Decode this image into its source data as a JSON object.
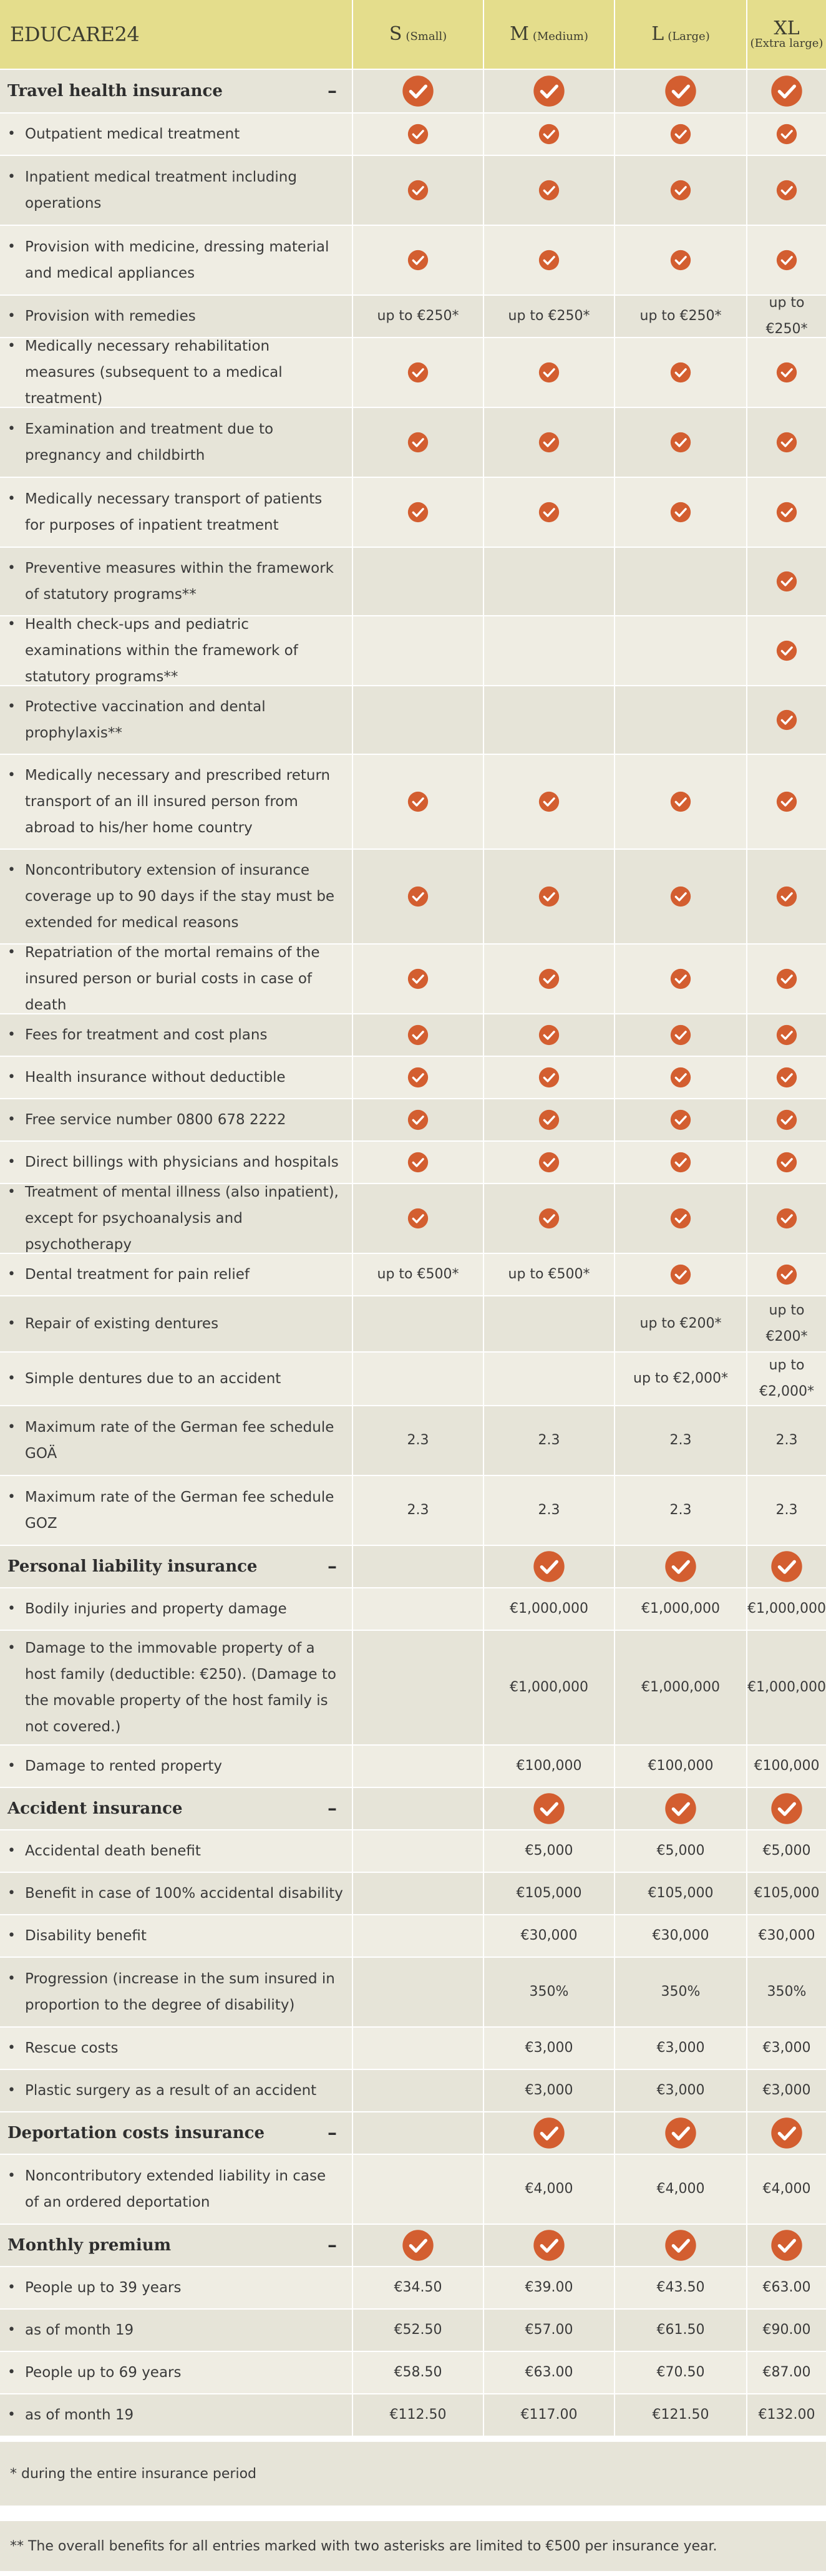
{
  "header": {
    "brand": "EDUCARE24",
    "columns": [
      {
        "letter": "S",
        "size": "(Small)"
      },
      {
        "letter": "M",
        "size": "(Medium)"
      },
      {
        "letter": "L",
        "size": "(Large)"
      },
      {
        "letter": "XL",
        "size": "(Extra large)"
      }
    ]
  },
  "colors": {
    "header_bg": "#e4dd8c",
    "row_light": "#efede3",
    "row_dark": "#e6e4d8",
    "check": "#d35e30"
  },
  "rows": [
    {
      "type": "section",
      "label": "Travel health insurance",
      "toggle": "–",
      "values": [
        "check",
        "check",
        "check",
        "check"
      ]
    },
    {
      "type": "item",
      "label": "Outpatient medical treatment",
      "values": [
        "check",
        "check",
        "check",
        "check"
      ]
    },
    {
      "type": "item",
      "label": "Inpatient medical treatment including operations",
      "values": [
        "check",
        "check",
        "check",
        "check"
      ]
    },
    {
      "type": "item",
      "label": "Provision with medicine, dressing material and medical appliances",
      "values": [
        "check",
        "check",
        "check",
        "check"
      ]
    },
    {
      "type": "item",
      "label": "Provision with remedies",
      "values": [
        "up to €250*",
        "up to €250*",
        "up to €250*",
        "up to €250*"
      ]
    },
    {
      "type": "item",
      "label": "Medically necessary rehabilitation measures (subsequent to a medical treatment)",
      "values": [
        "check",
        "check",
        "check",
        "check"
      ]
    },
    {
      "type": "item",
      "label": "Examination and treatment due to pregnancy and childbirth",
      "values": [
        "check",
        "check",
        "check",
        "check"
      ]
    },
    {
      "type": "item",
      "label": "Medically necessary transport of patients for purposes of inpatient treatment",
      "values": [
        "check",
        "check",
        "check",
        "check"
      ]
    },
    {
      "type": "item",
      "label": "Preventive measures within the framework of statutory programs**",
      "values": [
        "",
        "",
        "",
        "check"
      ]
    },
    {
      "type": "item",
      "label": "Health check-ups and pediatric examinations within the framework of statutory programs**",
      "values": [
        "",
        "",
        "",
        "check"
      ]
    },
    {
      "type": "item",
      "label": "Protective vaccination and dental prophylaxis**",
      "values": [
        "",
        "",
        "",
        "check"
      ]
    },
    {
      "type": "item",
      "label": "Medically necessary and prescribed return transport of an ill insured person from abroad to his/her home country",
      "values": [
        "check",
        "check",
        "check",
        "check"
      ]
    },
    {
      "type": "item",
      "label": "Noncontributory extension of insurance coverage up to 90 days if the stay must be extended for medical reasons",
      "values": [
        "check",
        "check",
        "check",
        "check"
      ]
    },
    {
      "type": "item",
      "label": "Repatriation of the mortal remains of the insured person or burial costs in case of death",
      "values": [
        "check",
        "check",
        "check",
        "check"
      ]
    },
    {
      "type": "item",
      "label": "Fees for treatment and cost plans",
      "values": [
        "check",
        "check",
        "check",
        "check"
      ]
    },
    {
      "type": "item",
      "label": "Health insurance without deductible",
      "values": [
        "check",
        "check",
        "check",
        "check"
      ]
    },
    {
      "type": "item",
      "label": "Free service number 0800 678 2222",
      "values": [
        "check",
        "check",
        "check",
        "check"
      ]
    },
    {
      "type": "item",
      "label": "Direct billings with physicians and hospitals",
      "values": [
        "check",
        "check",
        "check",
        "check"
      ]
    },
    {
      "type": "item",
      "label": "Treatment of mental illness (also inpatient), except for psychoanalysis and psychotherapy",
      "values": [
        "check",
        "check",
        "check",
        "check"
      ]
    },
    {
      "type": "item",
      "label": "Dental treatment for pain relief",
      "values": [
        "up to €500*",
        "up to €500*",
        "check",
        "check"
      ]
    },
    {
      "type": "item",
      "label": "Repair of existing dentures",
      "values": [
        "",
        "",
        "up to €200*",
        "up to €200*"
      ]
    },
    {
      "type": "item",
      "label": "Simple dentures due to an accident",
      "values": [
        "",
        "",
        "up to €2,000*",
        "up to €2,000*"
      ]
    },
    {
      "type": "item",
      "label": "Maximum rate of the German fee schedule GOÄ",
      "values": [
        "2.3",
        "2.3",
        "2.3",
        "2.3"
      ]
    },
    {
      "type": "item",
      "label": "Maximum rate of the German fee schedule GOZ",
      "values": [
        "2.3",
        "2.3",
        "2.3",
        "2.3"
      ]
    },
    {
      "type": "section",
      "label": "Personal liability insurance",
      "toggle": "–",
      "values": [
        "",
        "check",
        "check",
        "check"
      ]
    },
    {
      "type": "item",
      "label": "Bodily injuries and property damage",
      "values": [
        "",
        "€1,000,000",
        "€1,000,000",
        "€1,000,000"
      ]
    },
    {
      "type": "item",
      "label": "Damage to the immovable property of a host family (deductible: €250). (Damage to the movable property of the host family is not covered.)",
      "values": [
        "",
        "€1,000,000",
        "€1,000,000",
        "€1,000,000"
      ]
    },
    {
      "type": "item",
      "label": "Damage to rented property",
      "values": [
        "",
        "€100,000",
        "€100,000",
        "€100,000"
      ]
    },
    {
      "type": "section",
      "label": "Accident insurance",
      "toggle": "–",
      "values": [
        "",
        "check",
        "check",
        "check"
      ]
    },
    {
      "type": "item",
      "label": "Accidental death benefit",
      "values": [
        "",
        "€5,000",
        "€5,000",
        "€5,000"
      ]
    },
    {
      "type": "item",
      "label": "Benefit in case of 100% accidental disability",
      "values": [
        "",
        "€105,000",
        "€105,000",
        "€105,000"
      ]
    },
    {
      "type": "item",
      "label": "Disability benefit",
      "values": [
        "",
        "€30,000",
        "€30,000",
        "€30,000"
      ]
    },
    {
      "type": "item",
      "label": "Progression (increase in the sum insured in proportion to the degree of disability)",
      "values": [
        "",
        "350%",
        "350%",
        "350%"
      ]
    },
    {
      "type": "item",
      "label": "Rescue costs",
      "values": [
        "",
        "€3,000",
        "€3,000",
        "€3,000"
      ]
    },
    {
      "type": "item",
      "label": "Plastic surgery as a result of an accident",
      "values": [
        "",
        "€3,000",
        "€3,000",
        "€3,000"
      ]
    },
    {
      "type": "section",
      "label": "Deportation costs insurance",
      "toggle": "–",
      "values": [
        "",
        "check",
        "check",
        "check"
      ]
    },
    {
      "type": "item",
      "label": "Noncontributory extended liability in case of an ordered deportation",
      "values": [
        "",
        "€4,000",
        "€4,000",
        "€4,000"
      ]
    },
    {
      "type": "section",
      "label": "Monthly premium",
      "toggle": "–",
      "values": [
        "check",
        "check",
        "check",
        "check"
      ]
    },
    {
      "type": "item",
      "label": "People up to 39 years",
      "values": [
        "€34.50",
        "€39.00",
        "€43.50",
        "€63.00"
      ]
    },
    {
      "type": "item",
      "label": "as of month 19",
      "values": [
        "€52.50",
        "€57.00",
        "€61.50",
        "€90.00"
      ]
    },
    {
      "type": "item",
      "label": "People up to 69 years",
      "values": [
        "€58.50",
        "€63.00",
        "€70.50",
        "€87.00"
      ]
    },
    {
      "type": "item",
      "label": "as of month 19",
      "values": [
        "€112.50",
        "€117.00",
        "€121.50",
        "€132.00"
      ]
    }
  ],
  "footnotes": {
    "one": "* during the entire insurance period",
    "two": "** The overall benefits for all entries marked with two asterisks are limited to €500 per insurance year."
  }
}
